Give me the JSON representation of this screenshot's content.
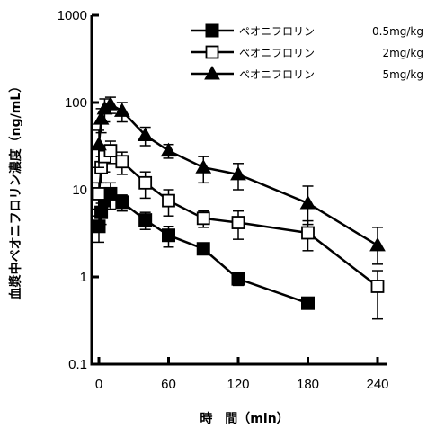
{
  "chart_data": {
    "type": "line",
    "title": "",
    "xlabel": "時　間（min）",
    "ylabel": "血漿中ペオニフロリン濃度（ng/mL）",
    "x_ticks": [
      0,
      60,
      120,
      180,
      240
    ],
    "x_tick_labels": [
      "0",
      "60",
      "120",
      "180",
      "240"
    ],
    "y_ticks": [
      0.1,
      1,
      10,
      100,
      1000
    ],
    "y_tick_labels": [
      "0.1",
      "1",
      "10",
      "100",
      "1000"
    ],
    "xlim": [
      -5,
      245
    ],
    "ylim": [
      0.1,
      1000
    ],
    "y_scale": "log",
    "grid": false,
    "legend_position": "top-right",
    "series": [
      {
        "name": "ペオニフロリン",
        "dose_label": "0.5mg/kg",
        "marker": "filled-square",
        "x": [
          0,
          2,
          5,
          10,
          20,
          40,
          60,
          90,
          120,
          180
        ],
        "y": [
          3.8,
          5.5,
          7.5,
          9.0,
          7.2,
          4.5,
          3.0,
          2.1,
          0.95,
          0.5
        ],
        "err_up": [
          1.2,
          1.5,
          1.5,
          3.0,
          1.5,
          1.0,
          0.8,
          0,
          0.15,
          0.07
        ],
        "err_down": [
          1.3,
          1.5,
          1.5,
          3.0,
          1.5,
          1.0,
          0.8,
          0,
          0.15,
          0.07
        ]
      },
      {
        "name": "ペオニフロリン",
        "dose_label": "2mg/kg",
        "marker": "open-square",
        "x": [
          0,
          2,
          5,
          10,
          20,
          40,
          60,
          90,
          120,
          180,
          240
        ],
        "y": [
          9.0,
          18.0,
          24.0,
          28.0,
          21.0,
          12.0,
          7.5,
          4.7,
          4.2,
          3.2,
          0.78
        ],
        "err_up": [
          3.0,
          6.0,
          8.0,
          8.0,
          6.0,
          4.0,
          2.5,
          1.0,
          1.5,
          1.2,
          0.4
        ],
        "err_down": [
          3.0,
          6.0,
          8.0,
          8.0,
          6.0,
          4.0,
          2.5,
          1.0,
          1.5,
          1.2,
          0.45
        ]
      },
      {
        "name": "ペオニフロリン",
        "dose_label": "5mg/kg",
        "marker": "filled-triangle",
        "x": [
          0,
          2,
          5,
          10,
          20,
          40,
          60,
          90,
          120,
          180,
          240
        ],
        "y": [
          33.0,
          65.0,
          85.0,
          95.0,
          80.0,
          42.0,
          28.0,
          18.0,
          15.0,
          7.0,
          2.3
        ],
        "err_up": [
          15.0,
          20.0,
          25.0,
          20.0,
          20.0,
          10.0,
          5.0,
          6.0,
          5.0,
          4.0,
          1.4
        ],
        "err_down": [
          15.0,
          20.0,
          25.0,
          20.0,
          20.0,
          10.0,
          5.0,
          6.0,
          5.0,
          3.0,
          0.9
        ]
      }
    ]
  },
  "colors": {
    "ink": "#000000",
    "background": "#ffffff"
  }
}
